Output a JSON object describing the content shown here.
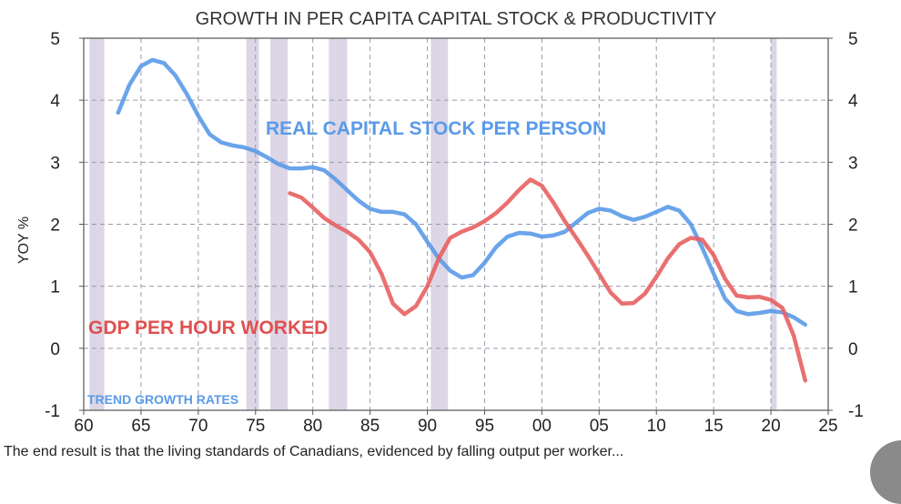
{
  "caption": "The end result is that the living standards of Canadians, evidenced by falling output per worker...",
  "chart_data": {
    "type": "line",
    "title": "GROWTH IN PER CAPITA CAPITAL STOCK & PRODUCTIVITY",
    "ylabel": "YOY %",
    "xlim": [
      1960,
      2025
    ],
    "ylim": [
      -1,
      5
    ],
    "x_ticks": [
      "60",
      "65",
      "70",
      "75",
      "80",
      "85",
      "90",
      "95",
      "00",
      "05",
      "10",
      "15",
      "20",
      "25"
    ],
    "y_ticks": [
      "-1",
      "0",
      "1",
      "2",
      "3",
      "4",
      "5"
    ],
    "grid": true,
    "annotations": {
      "trend": "TREND GROWTH RATES"
    },
    "recessions": [
      [
        1960.5,
        1961.8
      ],
      [
        1974.2,
        1975.3
      ],
      [
        1976.3,
        1977.8
      ],
      [
        1981.4,
        1983.0
      ],
      [
        1990.3,
        1991.8
      ],
      [
        2020.0,
        2020.5
      ]
    ],
    "series": [
      {
        "name": "REAL CAPITAL STOCK PER PERSON",
        "color": "#5a9ae8",
        "points": [
          [
            1963,
            3.8
          ],
          [
            1964,
            4.25
          ],
          [
            1965,
            4.55
          ],
          [
            1966,
            4.65
          ],
          [
            1967,
            4.6
          ],
          [
            1968,
            4.4
          ],
          [
            1969,
            4.1
          ],
          [
            1970,
            3.75
          ],
          [
            1971,
            3.45
          ],
          [
            1972,
            3.32
          ],
          [
            1973,
            3.27
          ],
          [
            1974,
            3.24
          ],
          [
            1975,
            3.18
          ],
          [
            1976,
            3.08
          ],
          [
            1977,
            2.97
          ],
          [
            1978,
            2.9
          ],
          [
            1979,
            2.9
          ],
          [
            1980,
            2.92
          ],
          [
            1981,
            2.87
          ],
          [
            1982,
            2.72
          ],
          [
            1983,
            2.55
          ],
          [
            1984,
            2.38
          ],
          [
            1985,
            2.25
          ],
          [
            1986,
            2.2
          ],
          [
            1987,
            2.2
          ],
          [
            1988,
            2.16
          ],
          [
            1989,
            2.0
          ],
          [
            1990,
            1.72
          ],
          [
            1991,
            1.45
          ],
          [
            1992,
            1.25
          ],
          [
            1993,
            1.14
          ],
          [
            1994,
            1.18
          ],
          [
            1995,
            1.38
          ],
          [
            1996,
            1.63
          ],
          [
            1997,
            1.8
          ],
          [
            1998,
            1.86
          ],
          [
            1999,
            1.85
          ],
          [
            2000,
            1.8
          ],
          [
            2001,
            1.82
          ],
          [
            2002,
            1.88
          ],
          [
            2003,
            2.03
          ],
          [
            2004,
            2.18
          ],
          [
            2005,
            2.25
          ],
          [
            2006,
            2.22
          ],
          [
            2007,
            2.13
          ],
          [
            2008,
            2.07
          ],
          [
            2009,
            2.12
          ],
          [
            2010,
            2.2
          ],
          [
            2011,
            2.28
          ],
          [
            2012,
            2.22
          ],
          [
            2013,
            2.0
          ],
          [
            2014,
            1.62
          ],
          [
            2015,
            1.2
          ],
          [
            2016,
            0.8
          ],
          [
            2017,
            0.6
          ],
          [
            2018,
            0.55
          ],
          [
            2019,
            0.57
          ],
          [
            2020,
            0.6
          ],
          [
            2021,
            0.58
          ],
          [
            2022,
            0.5
          ],
          [
            2023,
            0.38
          ]
        ]
      },
      {
        "name": "GDP PER HOUR WORKED",
        "color": "#e86060",
        "points": [
          [
            1978,
            2.5
          ],
          [
            1979,
            2.43
          ],
          [
            1980,
            2.27
          ],
          [
            1981,
            2.1
          ],
          [
            1982,
            1.98
          ],
          [
            1983,
            1.88
          ],
          [
            1984,
            1.75
          ],
          [
            1985,
            1.55
          ],
          [
            1986,
            1.2
          ],
          [
            1987,
            0.72
          ],
          [
            1988,
            0.55
          ],
          [
            1989,
            0.68
          ],
          [
            1990,
            1.0
          ],
          [
            1991,
            1.45
          ],
          [
            1992,
            1.78
          ],
          [
            1993,
            1.88
          ],
          [
            1994,
            1.95
          ],
          [
            1995,
            2.05
          ],
          [
            1996,
            2.18
          ],
          [
            1997,
            2.35
          ],
          [
            1998,
            2.55
          ],
          [
            1999,
            2.72
          ],
          [
            2000,
            2.62
          ],
          [
            2001,
            2.35
          ],
          [
            2002,
            2.05
          ],
          [
            2003,
            1.78
          ],
          [
            2004,
            1.5
          ],
          [
            2005,
            1.2
          ],
          [
            2006,
            0.9
          ],
          [
            2007,
            0.72
          ],
          [
            2008,
            0.73
          ],
          [
            2009,
            0.88
          ],
          [
            2010,
            1.15
          ],
          [
            2011,
            1.45
          ],
          [
            2012,
            1.68
          ],
          [
            2013,
            1.78
          ],
          [
            2014,
            1.75
          ],
          [
            2015,
            1.5
          ],
          [
            2016,
            1.12
          ],
          [
            2017,
            0.85
          ],
          [
            2018,
            0.82
          ],
          [
            2019,
            0.83
          ],
          [
            2020,
            0.78
          ],
          [
            2021,
            0.65
          ],
          [
            2022,
            0.2
          ],
          [
            2023,
            -0.52
          ]
        ]
      }
    ]
  }
}
